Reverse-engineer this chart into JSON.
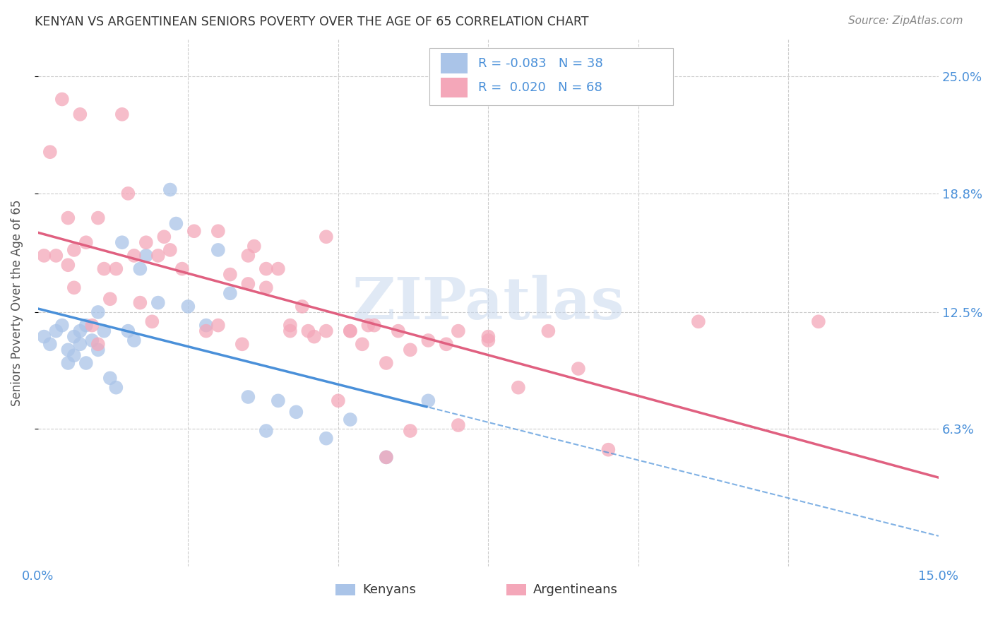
{
  "title": "KENYAN VS ARGENTINEAN SENIORS POVERTY OVER THE AGE OF 65 CORRELATION CHART",
  "source": "Source: ZipAtlas.com",
  "ylabel": "Seniors Poverty Over the Age of 65",
  "xlim": [
    0.0,
    0.15
  ],
  "ylim": [
    -0.01,
    0.27
  ],
  "yticks": [
    0.063,
    0.125,
    0.188,
    0.25
  ],
  "ytick_labels": [
    "6.3%",
    "12.5%",
    "18.8%",
    "25.0%"
  ],
  "xticks": [
    0.0,
    0.025,
    0.05,
    0.075,
    0.1,
    0.125,
    0.15
  ],
  "xtick_labels": [
    "0.0%",
    "",
    "",
    "",
    "",
    "",
    "15.0%"
  ],
  "kenyan_R": "-0.083",
  "kenyan_N": "38",
  "argentinean_R": "0.020",
  "argentinean_N": "68",
  "kenyan_color": "#aac4e8",
  "argentinean_color": "#f4a7b9",
  "trend_kenyan_color": "#4a90d9",
  "trend_argentinean_color": "#e06080",
  "background_color": "#ffffff",
  "grid_color": "#cccccc",
  "watermark": "ZIPatlas",
  "kenyan_x": [
    0.001,
    0.002,
    0.003,
    0.004,
    0.005,
    0.005,
    0.006,
    0.006,
    0.007,
    0.007,
    0.008,
    0.008,
    0.009,
    0.01,
    0.01,
    0.011,
    0.012,
    0.013,
    0.014,
    0.015,
    0.016,
    0.017,
    0.018,
    0.02,
    0.022,
    0.023,
    0.025,
    0.028,
    0.03,
    0.032,
    0.035,
    0.038,
    0.04,
    0.043,
    0.048,
    0.052,
    0.058,
    0.065
  ],
  "kenyan_y": [
    0.112,
    0.108,
    0.115,
    0.118,
    0.105,
    0.098,
    0.112,
    0.102,
    0.115,
    0.108,
    0.118,
    0.098,
    0.11,
    0.125,
    0.105,
    0.115,
    0.09,
    0.085,
    0.162,
    0.115,
    0.11,
    0.148,
    0.155,
    0.13,
    0.19,
    0.172,
    0.128,
    0.118,
    0.158,
    0.135,
    0.08,
    0.062,
    0.078,
    0.072,
    0.058,
    0.068,
    0.048,
    0.078
  ],
  "argentinean_x": [
    0.001,
    0.002,
    0.003,
    0.004,
    0.005,
    0.005,
    0.006,
    0.006,
    0.007,
    0.008,
    0.009,
    0.01,
    0.01,
    0.011,
    0.012,
    0.013,
    0.014,
    0.015,
    0.016,
    0.017,
    0.018,
    0.019,
    0.02,
    0.021,
    0.022,
    0.024,
    0.026,
    0.028,
    0.03,
    0.032,
    0.034,
    0.035,
    0.036,
    0.038,
    0.04,
    0.042,
    0.044,
    0.046,
    0.048,
    0.05,
    0.052,
    0.054,
    0.056,
    0.058,
    0.06,
    0.062,
    0.065,
    0.068,
    0.07,
    0.075,
    0.03,
    0.035,
    0.038,
    0.042,
    0.045,
    0.048,
    0.052,
    0.055,
    0.058,
    0.062,
    0.07,
    0.075,
    0.08,
    0.085,
    0.09,
    0.095,
    0.11,
    0.13
  ],
  "argentinean_y": [
    0.155,
    0.21,
    0.155,
    0.238,
    0.15,
    0.175,
    0.158,
    0.138,
    0.23,
    0.162,
    0.118,
    0.108,
    0.175,
    0.148,
    0.132,
    0.148,
    0.23,
    0.188,
    0.155,
    0.13,
    0.162,
    0.12,
    0.155,
    0.165,
    0.158,
    0.148,
    0.168,
    0.115,
    0.118,
    0.145,
    0.108,
    0.155,
    0.16,
    0.148,
    0.148,
    0.118,
    0.128,
    0.112,
    0.115,
    0.078,
    0.115,
    0.108,
    0.118,
    0.098,
    0.115,
    0.105,
    0.11,
    0.108,
    0.065,
    0.112,
    0.168,
    0.14,
    0.138,
    0.115,
    0.115,
    0.165,
    0.115,
    0.118,
    0.048,
    0.062,
    0.115,
    0.11,
    0.085,
    0.115,
    0.095,
    0.052,
    0.12,
    0.12
  ]
}
